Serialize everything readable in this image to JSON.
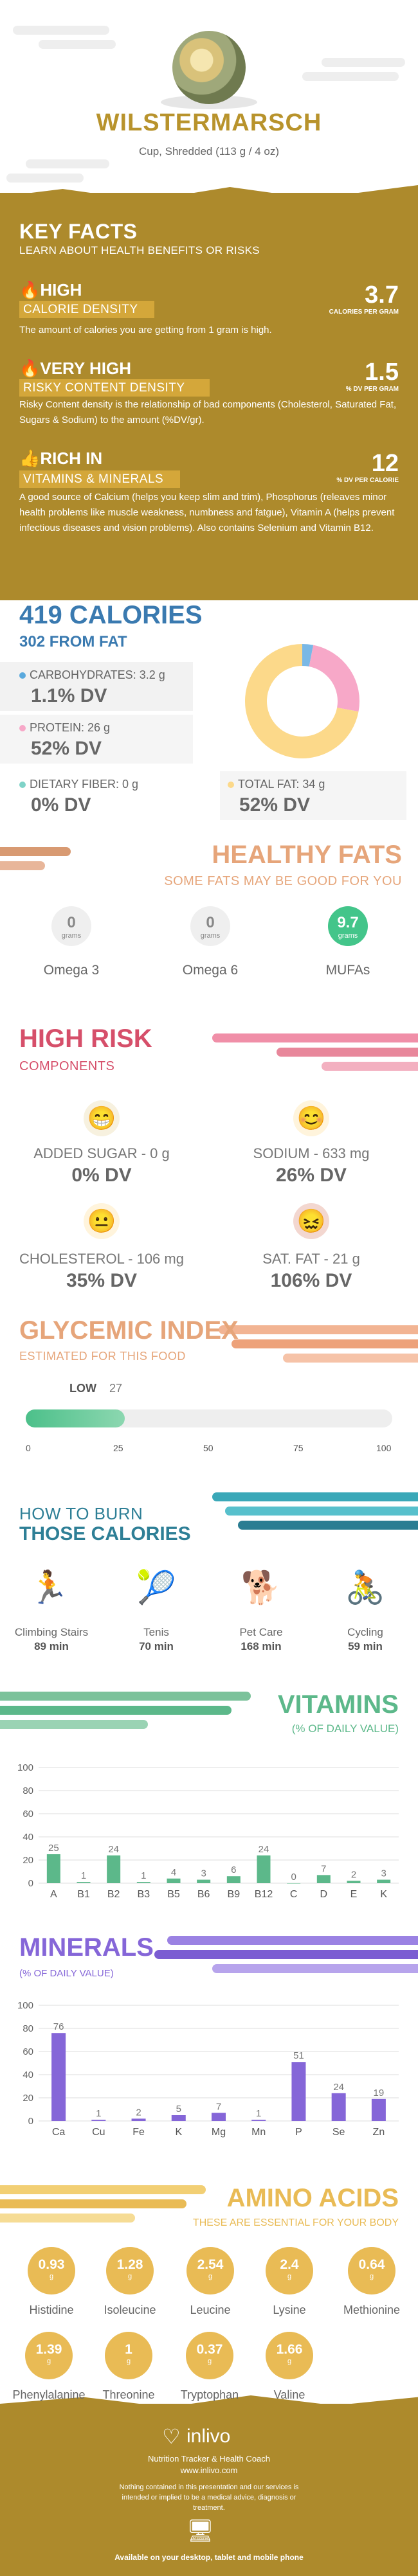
{
  "header": {
    "title": "WILSTERMARSCH",
    "subtitle": "Cup, Shredded (113 g / 4 oz)"
  },
  "key_facts": {
    "title": "KEY FACTS",
    "subtitle": "LEARN ABOUT HEALTH BENEFITS OR RISKS",
    "items": [
      {
        "level": "HIGH",
        "label": "CALORIE DENSITY",
        "value": "3.7",
        "unit": "CALORIES PER GRAM",
        "text": "The amount of calories you are getting from 1 gram is high.",
        "icon": "flame-icon"
      },
      {
        "level": "VERY HIGH",
        "label": "RISKY CONTENT DENSITY",
        "value": "1.5",
        "unit": "% DV PER GRAM",
        "text": "Risky Content density is the relationship of bad components (Cholesterol, Saturated Fat, Sugars & Sodium) to the amount (%DV/gr).",
        "icon": "flame-icon"
      },
      {
        "level": "RICH  IN",
        "label": "VITAMINS & MINERALS",
        "value": "12",
        "unit": "% DV PER CALORIE",
        "text": "A good source of Calcium (helps you keep slim and trim), Phosphorus (releaves minor health problems like muscle weakness, numbness and fatgue), Vitamin A (helps prevent infectious diseases and vision problems). Also contains Selenium and Vitamin B12.",
        "icon": "thumbs-up-icon"
      }
    ]
  },
  "calories": {
    "title": "419 CALORIES",
    "subtitle": "302 FROM FAT",
    "carbs": {
      "label": "CARBOHYDRATES: 3.2 g",
      "dv": "1.1% DV",
      "color": "#5aa9dd"
    },
    "protein": {
      "label": "PROTEIN: 26 g",
      "dv": "52% DV",
      "color": "#f7a8c8"
    },
    "fiber": {
      "label": "DIETARY FIBER: 0 g",
      "dv": "0% DV",
      "color": "#7fd3c8"
    },
    "fat": {
      "label": "TOTAL FAT: 34 g",
      "dv": "52% DV",
      "color": "#fcd98a"
    },
    "donut": [
      {
        "name": "carbs",
        "value": 3.1,
        "color": "#79b8e6"
      },
      {
        "name": "protein",
        "value": 24.8,
        "color": "#f7a8c8"
      },
      {
        "name": "fat",
        "value": 72.1,
        "color": "#fcd98a"
      }
    ]
  },
  "healthy_fats": {
    "title": "HEALTHY FATS",
    "subtitle": "SOME FATS MAY BE GOOD FOR YOU",
    "items": [
      {
        "value": "0",
        "grams": "grams",
        "label": "Omega 3",
        "color": "#efefef",
        "text_color": "#888"
      },
      {
        "value": "0",
        "grams": "grams",
        "label": "Omega 6",
        "color": "#efefef",
        "text_color": "#888"
      },
      {
        "value": "9.7",
        "grams": "grams",
        "label": "MUFAs",
        "color": "#43c58a",
        "text_color": "#fff"
      }
    ]
  },
  "high_risk": {
    "title": "HIGH RISK",
    "subtitle": "COMPONENTS",
    "items": [
      {
        "label": "ADDED SUGAR - 0 g",
        "dv": "0% DV",
        "face": "grin-face-icon"
      },
      {
        "label": "SODIUM - 633 mg",
        "dv": "26% DV",
        "face": "smile-face-icon"
      },
      {
        "label": "CHOLESTEROL - 106 mg",
        "dv": "35% DV",
        "face": "neutral-face-icon"
      },
      {
        "label": "SAT. FAT - 21 g",
        "dv": "106% DV",
        "face": "sick-face-icon"
      }
    ]
  },
  "glycemic": {
    "title": "GLYCEMIC INDEX",
    "subtitle": "ESTIMATED FOR THIS FOOD",
    "level": "LOW",
    "value": "27",
    "fill": 0.27,
    "ticks": [
      "0",
      "25",
      "50",
      "75",
      "100"
    ]
  },
  "burn": {
    "title1": "HOW TO BURN",
    "title2": "THOSE CALORIES",
    "items": [
      {
        "label": "Climbing Stairs",
        "min": "89 min",
        "icon": "stairs-icon"
      },
      {
        "label": "Tenis",
        "min": "70 min",
        "icon": "tennis-icon"
      },
      {
        "label": "Pet Care",
        "min": "168 min",
        "icon": "dog-walk-icon"
      },
      {
        "label": "Cycling",
        "min": "59 min",
        "icon": "cycling-icon"
      }
    ]
  },
  "chart_data": [
    {
      "type": "bar",
      "title": "VITAMINS",
      "subtitle": "(% OF DAILY VALUE)",
      "categories": [
        "A",
        "B1",
        "B2",
        "B3",
        "B5",
        "B6",
        "B9",
        "B12",
        "C",
        "D",
        "E",
        "K"
      ],
      "values": [
        25,
        1,
        24,
        1,
        4,
        3,
        6,
        24,
        0,
        7,
        2,
        3
      ],
      "labels": [
        "25",
        "1",
        "24",
        "1",
        "4",
        "3",
        "6",
        "24",
        "0",
        "7",
        "2",
        "3"
      ],
      "ylim": [
        0,
        100
      ],
      "yticks": [
        "0",
        "20",
        "40",
        "60",
        "80",
        "100"
      ],
      "color": "#5cb88a",
      "grid": true
    },
    {
      "type": "bar",
      "title": "MINERALS",
      "subtitle": "(% OF DAILY VALUE)",
      "categories": [
        "Ca",
        "Cu",
        "Fe",
        "K",
        "Mg",
        "Mn",
        "P",
        "Se",
        "Zn"
      ],
      "values": [
        76,
        1,
        2,
        5,
        7,
        1,
        51,
        24,
        19
      ],
      "labels": [
        "76",
        "1",
        "2",
        "5",
        "7",
        "1",
        "51",
        "24",
        "19"
      ],
      "ylim": [
        0,
        100
      ],
      "yticks": [
        "0",
        "20",
        "40",
        "60",
        "80",
        "100"
      ],
      "color": "#8566d8",
      "grid": true
    }
  ],
  "amino": {
    "title": "AMINO ACIDS",
    "subtitle": "THESE ARE ESSENTIAL FOR YOUR BODY",
    "items": [
      {
        "value": "0.93",
        "g": "g",
        "name": "Histidine"
      },
      {
        "value": "1.28",
        "g": "g",
        "name": "Isoleucine"
      },
      {
        "value": "2.54",
        "g": "g",
        "name": "Leucine"
      },
      {
        "value": "2.4",
        "g": "g",
        "name": "Lysine"
      },
      {
        "value": "0.64",
        "g": "g",
        "name": "Methionine"
      },
      {
        "value": "1.39",
        "g": "g",
        "name": "Phenylalanine"
      },
      {
        "value": "1",
        "g": "g",
        "name": "Threonine"
      },
      {
        "value": "0.37",
        "g": "g",
        "name": "Tryptophan"
      },
      {
        "value": "1.66",
        "g": "g",
        "name": "Valine"
      }
    ]
  },
  "footer": {
    "brand": "inlivo",
    "tagline": "Nutrition Tracker & Health Coach",
    "url": "www.inlivo.com",
    "disclaimer": "Nothing contained in this presentation and our services is intended or implied to be a medical advice, diagnosis or treatment.",
    "available": "Available on your desktop, tablet and mobile phone"
  }
}
